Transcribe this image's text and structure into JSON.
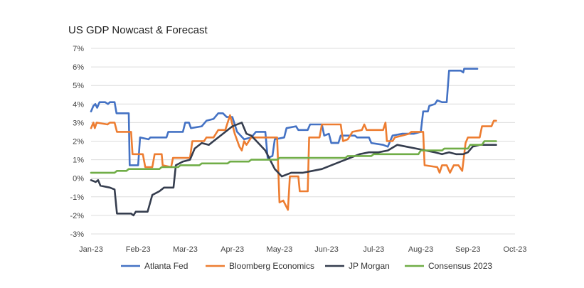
{
  "chart_data": {
    "type": "line",
    "title": "US GDP Nowcast & Forecast",
    "xlabel": "",
    "ylabel": "",
    "x_ticks": [
      "Jan-23",
      "Feb-23",
      "Mar-23",
      "Apr-23",
      "May-23",
      "Jun-23",
      "Jul-23",
      "Aug-23",
      "Sep-23",
      "Oct-23"
    ],
    "x_range_months": [
      0,
      9
    ],
    "y_ticks": [
      "7%",
      "6%",
      "5%",
      "4%",
      "3%",
      "2%",
      "1%",
      "0%",
      "-1%",
      "-2%",
      "-3%"
    ],
    "ylim": [
      -3,
      7
    ],
    "grid": "horizontal",
    "legend_position": "bottom",
    "x_unit": "months since Jan-23",
    "series": [
      {
        "name": "Atlanta Fed",
        "color": "#4472C4",
        "points": [
          [
            0.0,
            3.6
          ],
          [
            0.05,
            3.9
          ],
          [
            0.09,
            4.0
          ],
          [
            0.13,
            3.8
          ],
          [
            0.18,
            4.1
          ],
          [
            0.3,
            4.1
          ],
          [
            0.36,
            4.0
          ],
          [
            0.4,
            4.1
          ],
          [
            0.5,
            4.1
          ],
          [
            0.54,
            3.5
          ],
          [
            0.8,
            3.5
          ],
          [
            0.82,
            0.7
          ],
          [
            1.0,
            0.7
          ],
          [
            1.04,
            2.2
          ],
          [
            1.22,
            2.1
          ],
          [
            1.26,
            2.2
          ],
          [
            1.6,
            2.2
          ],
          [
            1.64,
            2.5
          ],
          [
            1.95,
            2.5
          ],
          [
            2.0,
            3.0
          ],
          [
            2.08,
            3.0
          ],
          [
            2.12,
            2.7
          ],
          [
            2.35,
            2.8
          ],
          [
            2.45,
            3.1
          ],
          [
            2.6,
            3.2
          ],
          [
            2.7,
            3.5
          ],
          [
            2.8,
            3.5
          ],
          [
            2.88,
            3.3
          ],
          [
            3.0,
            3.3
          ],
          [
            3.1,
            2.5
          ],
          [
            3.25,
            2.1
          ],
          [
            3.4,
            2.2
          ],
          [
            3.5,
            2.5
          ],
          [
            3.7,
            2.5
          ],
          [
            3.75,
            1.1
          ],
          [
            3.85,
            1.2
          ],
          [
            3.9,
            2.1
          ],
          [
            4.1,
            2.2
          ],
          [
            4.15,
            2.7
          ],
          [
            4.35,
            2.8
          ],
          [
            4.4,
            2.6
          ],
          [
            4.6,
            2.6
          ],
          [
            4.65,
            2.9
          ],
          [
            4.9,
            2.9
          ],
          [
            4.95,
            2.3
          ],
          [
            5.05,
            2.4
          ],
          [
            5.1,
            1.9
          ],
          [
            5.25,
            1.9
          ],
          [
            5.3,
            2.3
          ],
          [
            5.6,
            2.3
          ],
          [
            5.65,
            2.2
          ],
          [
            5.9,
            2.2
          ],
          [
            5.95,
            1.9
          ],
          [
            6.2,
            1.8
          ],
          [
            6.3,
            1.7
          ],
          [
            6.4,
            2.3
          ],
          [
            6.6,
            2.4
          ],
          [
            6.85,
            2.4
          ],
          [
            7.0,
            2.5
          ],
          [
            7.05,
            3.6
          ],
          [
            7.15,
            3.6
          ],
          [
            7.18,
            3.9
          ],
          [
            7.3,
            4.0
          ],
          [
            7.35,
            4.2
          ],
          [
            7.45,
            4.1
          ],
          [
            7.55,
            4.1
          ],
          [
            7.6,
            5.8
          ],
          [
            7.85,
            5.8
          ],
          [
            7.9,
            5.7
          ],
          [
            7.92,
            5.9
          ],
          [
            8.2,
            5.9
          ]
        ]
      },
      {
        "name": "Bloomberg Economics",
        "color": "#ED7D31",
        "points": [
          [
            0.0,
            2.7
          ],
          [
            0.05,
            3.0
          ],
          [
            0.08,
            2.7
          ],
          [
            0.12,
            3.0
          ],
          [
            0.35,
            2.9
          ],
          [
            0.4,
            3.0
          ],
          [
            0.5,
            3.0
          ],
          [
            0.55,
            2.5
          ],
          [
            0.85,
            2.5
          ],
          [
            0.88,
            1.3
          ],
          [
            1.1,
            1.3
          ],
          [
            1.15,
            0.6
          ],
          [
            1.3,
            0.6
          ],
          [
            1.35,
            1.3
          ],
          [
            1.5,
            1.3
          ],
          [
            1.52,
            0.7
          ],
          [
            1.7,
            0.6
          ],
          [
            1.74,
            1.1
          ],
          [
            2.1,
            1.1
          ],
          [
            2.15,
            2.0
          ],
          [
            2.4,
            2.0
          ],
          [
            2.45,
            2.2
          ],
          [
            2.6,
            2.2
          ],
          [
            2.7,
            2.6
          ],
          [
            2.85,
            2.6
          ],
          [
            2.95,
            3.4
          ],
          [
            3.0,
            2.9
          ],
          [
            3.05,
            2.4
          ],
          [
            3.15,
            1.7
          ],
          [
            3.2,
            1.5
          ],
          [
            3.25,
            2.0
          ],
          [
            3.3,
            1.8
          ],
          [
            3.4,
            2.2
          ],
          [
            3.95,
            2.2
          ],
          [
            4.0,
            -1.3
          ],
          [
            4.08,
            -1.2
          ],
          [
            4.18,
            -1.7
          ],
          [
            4.22,
            0.1
          ],
          [
            4.4,
            0.1
          ],
          [
            4.43,
            -0.7
          ],
          [
            4.6,
            -0.7
          ],
          [
            4.63,
            2.2
          ],
          [
            4.85,
            2.2
          ],
          [
            4.9,
            2.9
          ],
          [
            5.3,
            2.9
          ],
          [
            5.35,
            2.0
          ],
          [
            5.45,
            2.1
          ],
          [
            5.55,
            2.5
          ],
          [
            5.75,
            2.6
          ],
          [
            5.8,
            2.9
          ],
          [
            5.85,
            2.6
          ],
          [
            6.2,
            2.6
          ],
          [
            6.25,
            3.0
          ],
          [
            6.28,
            2.0
          ],
          [
            6.4,
            2.0
          ],
          [
            6.45,
            2.2
          ],
          [
            6.6,
            2.3
          ],
          [
            6.75,
            2.4
          ],
          [
            6.8,
            2.5
          ],
          [
            7.05,
            2.5
          ],
          [
            7.08,
            0.7
          ],
          [
            7.35,
            0.6
          ],
          [
            7.4,
            0.3
          ],
          [
            7.45,
            0.7
          ],
          [
            7.55,
            0.7
          ],
          [
            7.62,
            0.3
          ],
          [
            7.7,
            0.7
          ],
          [
            7.8,
            0.7
          ],
          [
            7.88,
            0.4
          ],
          [
            7.95,
            1.9
          ],
          [
            8.0,
            2.2
          ],
          [
            8.25,
            2.2
          ],
          [
            8.3,
            2.8
          ],
          [
            8.5,
            2.8
          ],
          [
            8.55,
            3.1
          ],
          [
            8.6,
            3.1
          ]
        ]
      },
      {
        "name": "JP Morgan",
        "color": "#353D4E",
        "points": [
          [
            0.0,
            -0.1
          ],
          [
            0.1,
            -0.2
          ],
          [
            0.15,
            -0.1
          ],
          [
            0.2,
            -0.4
          ],
          [
            0.4,
            -0.5
          ],
          [
            0.5,
            -0.6
          ],
          [
            0.55,
            -1.9
          ],
          [
            0.85,
            -1.9
          ],
          [
            0.9,
            -2.0
          ],
          [
            0.95,
            -1.8
          ],
          [
            1.2,
            -1.8
          ],
          [
            1.3,
            -0.9
          ],
          [
            1.45,
            -0.7
          ],
          [
            1.55,
            -0.5
          ],
          [
            1.75,
            -0.5
          ],
          [
            1.8,
            0.7
          ],
          [
            1.95,
            0.9
          ],
          [
            2.1,
            1.0
          ],
          [
            2.2,
            1.6
          ],
          [
            2.35,
            1.9
          ],
          [
            2.5,
            1.8
          ],
          [
            2.65,
            2.1
          ],
          [
            2.8,
            2.4
          ],
          [
            3.0,
            2.8
          ],
          [
            3.2,
            3.0
          ],
          [
            3.3,
            2.4
          ],
          [
            3.4,
            2.3
          ],
          [
            3.55,
            1.9
          ],
          [
            3.7,
            1.5
          ],
          [
            3.8,
            1.0
          ],
          [
            3.9,
            0.5
          ],
          [
            4.05,
            0.1
          ],
          [
            4.25,
            0.3
          ],
          [
            4.5,
            0.3
          ],
          [
            4.7,
            0.4
          ],
          [
            4.9,
            0.5
          ],
          [
            5.1,
            0.7
          ],
          [
            5.3,
            0.9
          ],
          [
            5.5,
            1.1
          ],
          [
            5.7,
            1.3
          ],
          [
            5.9,
            1.4
          ],
          [
            6.1,
            1.4
          ],
          [
            6.3,
            1.5
          ],
          [
            6.5,
            1.8
          ],
          [
            6.7,
            1.7
          ],
          [
            6.9,
            1.6
          ],
          [
            7.1,
            1.5
          ],
          [
            7.3,
            1.4
          ],
          [
            7.45,
            1.3
          ],
          [
            7.6,
            1.4
          ],
          [
            7.75,
            1.3
          ],
          [
            7.9,
            1.3
          ],
          [
            8.0,
            1.4
          ],
          [
            8.1,
            1.7
          ],
          [
            8.25,
            1.8
          ],
          [
            8.45,
            1.8
          ],
          [
            8.6,
            1.8
          ]
        ]
      },
      {
        "name": "Consensus 2023",
        "color": "#70AD47",
        "points": [
          [
            0.0,
            0.3
          ],
          [
            0.5,
            0.3
          ],
          [
            0.55,
            0.4
          ],
          [
            0.75,
            0.4
          ],
          [
            0.8,
            0.5
          ],
          [
            1.45,
            0.5
          ],
          [
            1.5,
            0.6
          ],
          [
            1.85,
            0.6
          ],
          [
            1.9,
            0.7
          ],
          [
            2.3,
            0.7
          ],
          [
            2.35,
            0.8
          ],
          [
            2.9,
            0.8
          ],
          [
            2.95,
            0.9
          ],
          [
            3.35,
            0.9
          ],
          [
            3.4,
            1.0
          ],
          [
            3.95,
            1.0
          ],
          [
            4.0,
            1.1
          ],
          [
            5.4,
            1.1
          ],
          [
            5.45,
            1.2
          ],
          [
            5.95,
            1.2
          ],
          [
            6.0,
            1.3
          ],
          [
            6.95,
            1.3
          ],
          [
            7.0,
            1.5
          ],
          [
            7.45,
            1.5
          ],
          [
            7.5,
            1.6
          ],
          [
            8.0,
            1.6
          ],
          [
            8.05,
            1.8
          ],
          [
            8.3,
            1.8
          ],
          [
            8.35,
            2.0
          ],
          [
            8.6,
            2.0
          ]
        ]
      }
    ]
  }
}
